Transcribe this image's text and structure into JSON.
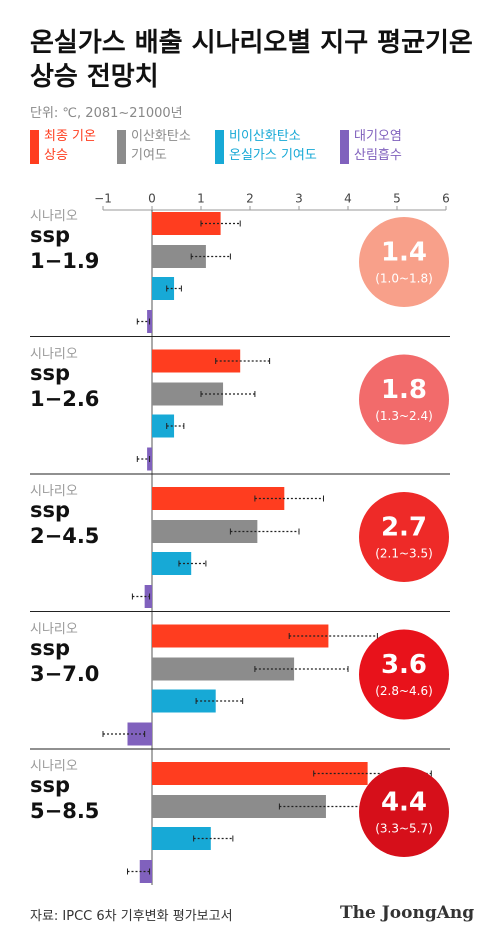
{
  "chart_data": {
    "type": "bar",
    "title": "온실가스 배출 시나리오별 지구 평균기온\n상승 전망치",
    "subtitle": "단위: ℃, 2081~21000년",
    "row_label": "시나리오",
    "categories": [
      "ssp\n1−1.9",
      "ssp\n1−2.6",
      "ssp\n2−4.5",
      "ssp\n3−7.0",
      "ssp\n5−8.5"
    ],
    "xlim": [
      -1,
      6
    ],
    "xticks": [
      {
        "value": -1,
        "label": "−1"
      },
      0,
      1,
      2,
      3,
      4,
      5,
      6
    ],
    "series": [
      {
        "name": "최종 기온\n상승",
        "color": "#ff3d1f",
        "values": [
          1.4,
          1.8,
          2.7,
          3.6,
          4.4
        ],
        "low": [
          1.0,
          1.3,
          2.1,
          2.8,
          3.3
        ],
        "high": [
          1.8,
          2.4,
          3.5,
          4.6,
          5.7
        ],
        "range_labels": [
          "(1.0~1.8)",
          "(1.3~2.4)",
          "(2.1~3.5)",
          "(2.8~4.6)",
          "(3.3~5.7)"
        ]
      },
      {
        "name": "이산화탄소\n기여도",
        "color": "#8c8c8c",
        "values": [
          1.1,
          1.45,
          2.15,
          2.9,
          3.55
        ],
        "low": [
          0.8,
          1.0,
          1.6,
          2.1,
          2.6
        ],
        "high": [
          1.6,
          2.1,
          3.0,
          4.0,
          4.9
        ]
      },
      {
        "name": "비이산화탄소\n온실가스 기여도",
        "color": "#17a9d6",
        "values": [
          0.45,
          0.45,
          0.8,
          1.3,
          1.2
        ],
        "low": [
          0.3,
          0.3,
          0.55,
          0.9,
          0.85
        ],
        "high": [
          0.6,
          0.65,
          1.1,
          1.85,
          1.65
        ]
      },
      {
        "name": "대기오염\n산림흡수",
        "color": "#8061bd",
        "values": [
          -0.1,
          -0.1,
          -0.15,
          -0.5,
          -0.25
        ],
        "low": [
          -0.3,
          -0.3,
          -0.4,
          -1.0,
          -0.5
        ],
        "high": [
          -0.05,
          -0.05,
          -0.05,
          -0.15,
          -0.05
        ]
      }
    ],
    "circle_colors": [
      "#f8a08a",
      "#f26b6b",
      "#ee2a28",
      "#e8121b",
      "#d60f1a"
    ],
    "source": "자료: IPCC 6차 기후변화 평가보고서",
    "brand": "The JoongAng"
  }
}
